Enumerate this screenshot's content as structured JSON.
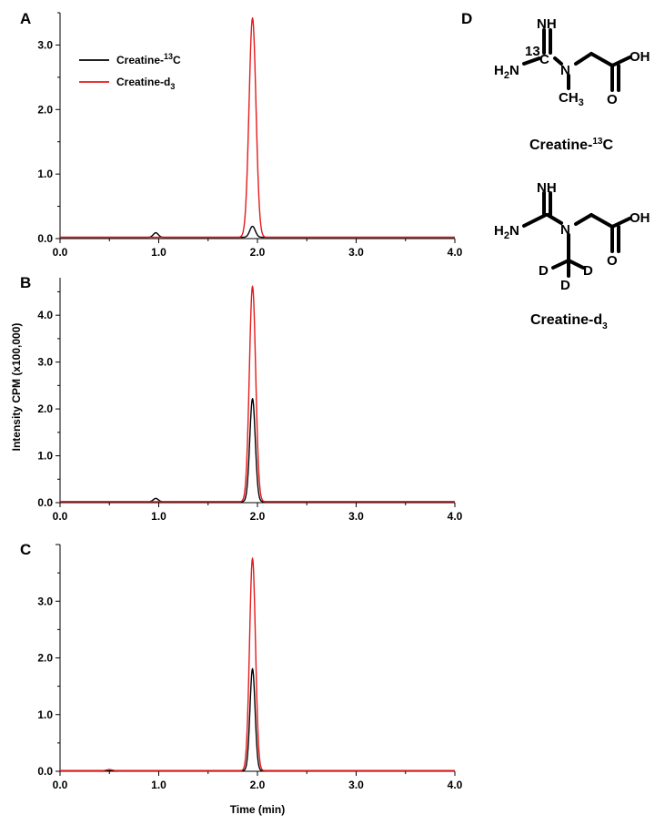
{
  "chart_data": [
    {
      "panel": "A",
      "type": "line",
      "xlim": [
        0,
        4.0
      ],
      "ylim": [
        0,
        3.5
      ],
      "xticks": [
        "0.0",
        "1.0",
        "2.0",
        "3.0",
        "4.0"
      ],
      "yticks": [
        "0.0",
        "1.0",
        "2.0",
        "3.0"
      ],
      "xlabel": "",
      "legend": "top-left",
      "series": [
        {
          "name": "Creatine-13C",
          "color": "#000000",
          "peaks": [
            {
              "center": 0.97,
              "height": 0.07,
              "sigma": 0.025
            },
            {
              "center": 1.95,
              "height": 0.17,
              "sigma": 0.028
            }
          ],
          "baseline": 0.02
        },
        {
          "name": "Creatine-d3",
          "color": "#e41a1c",
          "peaks": [
            {
              "center": 1.95,
              "height": 3.4,
              "sigma": 0.035
            }
          ],
          "baseline": 0.02
        }
      ]
    },
    {
      "panel": "B",
      "type": "line",
      "xlim": [
        0,
        4.0
      ],
      "ylim": [
        0,
        4.8
      ],
      "xticks": [
        "0.0",
        "1.0",
        "2.0",
        "3.0",
        "4.0"
      ],
      "yticks": [
        "0.0",
        "1.0",
        "2.0",
        "3.0",
        "4.0"
      ],
      "xlabel": "",
      "series": [
        {
          "name": "Creatine-13C",
          "color": "#000000",
          "peaks": [
            {
              "center": 0.97,
              "height": 0.07,
              "sigma": 0.025
            },
            {
              "center": 1.95,
              "height": 2.2,
              "sigma": 0.028
            }
          ],
          "baseline": 0.02
        },
        {
          "name": "Creatine-d3",
          "color": "#e41a1c",
          "peaks": [
            {
              "center": 1.95,
              "height": 4.6,
              "sigma": 0.032
            }
          ],
          "baseline": 0.02
        }
      ]
    },
    {
      "panel": "C",
      "type": "line",
      "xlim": [
        0,
        4.0
      ],
      "ylim": [
        0,
        4.0
      ],
      "xticks": [
        "0.0",
        "1.0",
        "2.0",
        "3.0",
        "4.0"
      ],
      "yticks": [
        "0.0",
        "1.0",
        "2.0",
        "3.0"
      ],
      "xlabel": "Time (min)",
      "series": [
        {
          "name": "Creatine-13C",
          "color": "#000000",
          "peaks": [
            {
              "center": 1.95,
              "height": 1.8,
              "sigma": 0.026
            }
          ],
          "baseline": 0.01
        },
        {
          "name": "Creatine-d3",
          "color": "#e41a1c",
          "peaks": [
            {
              "center": 0.5,
              "height": 0.02,
              "sigma": 0.03
            },
            {
              "center": 1.95,
              "height": 3.75,
              "sigma": 0.03
            }
          ],
          "baseline": 0.01
        }
      ]
    }
  ],
  "panel_labels": {
    "A": "A",
    "B": "B",
    "C": "C",
    "D": "D"
  },
  "ylabel_shared": "Intensity CPM (x100,000)",
  "legend": {
    "item1": {
      "base": "Creatine-",
      "sup": "13",
      "tail": "C",
      "color": "#000000"
    },
    "item2": {
      "base": "Creatine-d",
      "sub": "3",
      "color": "#e41a1c"
    }
  },
  "structures": {
    "mol1": {
      "name_base": "Creatine-",
      "name_sup": "13",
      "name_tail": "C",
      "atoms": {
        "nh": "NH",
        "isotope": "13",
        "c": "C",
        "h2n_h": "H",
        "h2n_sub": "2",
        "h2n_n": "N",
        "n": "N",
        "oh": "OH",
        "o": "O",
        "ch3_c": "CH",
        "ch3_sub": "3"
      }
    },
    "mol2": {
      "name_base": "Creatine-d",
      "name_sub": "3",
      "atoms": {
        "nh": "NH",
        "h2n_h": "H",
        "h2n_sub": "2",
        "h2n_n": "N",
        "n": "N",
        "oh": "OH",
        "o": "O",
        "d1": "D",
        "d2": "D",
        "d3": "D"
      }
    }
  }
}
